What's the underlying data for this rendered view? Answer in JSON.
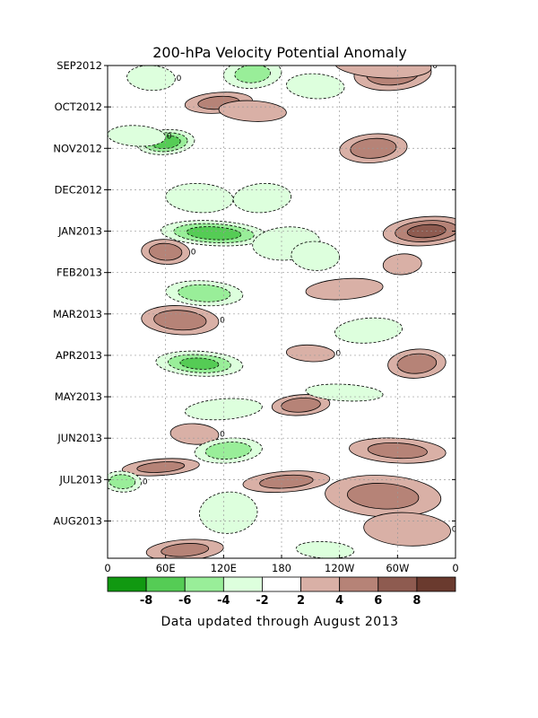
{
  "chart_data": {
    "type": "heatmap",
    "title": "200-hPa Velocity Potential Anomaly",
    "caption": "Data updated through August 2013",
    "x_ticks": [
      "0",
      "60E",
      "120E",
      "180",
      "120W",
      "60W",
      "0"
    ],
    "x_tick_lon": [
      0,
      60,
      120,
      180,
      240,
      300,
      360
    ],
    "xlim": [
      0,
      360
    ],
    "y_ticks": [
      "SEP2012",
      "OCT2012",
      "NOV2012",
      "DEC2012",
      "JAN2013",
      "FEB2013",
      "MAR2013",
      "APR2013",
      "MAY2013",
      "JUN2013",
      "JUL2013",
      "AUG2013"
    ],
    "y_tick_month": [
      0,
      1,
      2,
      3,
      4,
      5,
      6,
      7,
      8,
      9,
      10,
      11
    ],
    "ylim": [
      0,
      11.9
    ],
    "grid": true,
    "colorbar": {
      "tick_labels": [
        "-8",
        "-6",
        "-4",
        "-2",
        "2",
        "4",
        "6",
        "8"
      ],
      "colors": [
        "#119911",
        "#55cc55",
        "#99ee99",
        "#ddffdd",
        "#ffffff",
        "#d9b0a6",
        "#b68377",
        "#8e5b50",
        "#6a3a2e"
      ]
    },
    "zero_contour_label": "0",
    "anomaly_blobs": [
      {
        "lon": 45,
        "month": 0.3,
        "value": -3,
        "rlon": 25,
        "rmonth": 0.3
      },
      {
        "lon": 150,
        "month": 0.2,
        "value": -4,
        "rlon": 30,
        "rmonth": 0.35
      },
      {
        "lon": 215,
        "month": 0.5,
        "value": -3,
        "rlon": 30,
        "rmonth": 0.3
      },
      {
        "lon": 295,
        "month": 0.2,
        "value": 5,
        "rlon": 40,
        "rmonth": 0.4
      },
      {
        "lon": 285,
        "month": 0.0,
        "value": 3,
        "rlon": 50,
        "rmonth": 0.3
      },
      {
        "lon": 115,
        "month": 0.9,
        "value": 4,
        "rlon": 35,
        "rmonth": 0.25
      },
      {
        "lon": 150,
        "month": 1.1,
        "value": 3,
        "rlon": 35,
        "rmonth": 0.25
      },
      {
        "lon": 60,
        "month": 1.85,
        "value": -7,
        "rlon": 30,
        "rmonth": 0.3
      },
      {
        "lon": 30,
        "month": 1.7,
        "value": -3,
        "rlon": 30,
        "rmonth": 0.25
      },
      {
        "lon": 275,
        "month": 2.0,
        "value": 5,
        "rlon": 35,
        "rmonth": 0.35
      },
      {
        "lon": 95,
        "month": 3.2,
        "value": -3,
        "rlon": 35,
        "rmonth": 0.35
      },
      {
        "lon": 160,
        "month": 3.2,
        "value": -3,
        "rlon": 30,
        "rmonth": 0.35
      },
      {
        "lon": 110,
        "month": 4.05,
        "value": -7,
        "rlon": 55,
        "rmonth": 0.3
      },
      {
        "lon": 185,
        "month": 4.3,
        "value": -3,
        "rlon": 35,
        "rmonth": 0.4
      },
      {
        "lon": 215,
        "month": 4.6,
        "value": -3,
        "rlon": 25,
        "rmonth": 0.35
      },
      {
        "lon": 330,
        "month": 4.0,
        "value": 6,
        "rlon": 45,
        "rmonth": 0.35
      },
      {
        "lon": 60,
        "month": 4.5,
        "value": 5,
        "rlon": 25,
        "rmonth": 0.3
      },
      {
        "lon": 305,
        "month": 4.8,
        "value": 3,
        "rlon": 20,
        "rmonth": 0.25
      },
      {
        "lon": 100,
        "month": 5.5,
        "value": -5,
        "rlon": 40,
        "rmonth": 0.3
      },
      {
        "lon": 245,
        "month": 5.4,
        "value": 3,
        "rlon": 40,
        "rmonth": 0.25
      },
      {
        "lon": 75,
        "month": 6.15,
        "value": 5,
        "rlon": 40,
        "rmonth": 0.35
      },
      {
        "lon": 270,
        "month": 6.4,
        "value": -3,
        "rlon": 35,
        "rmonth": 0.3
      },
      {
        "lon": 95,
        "month": 7.2,
        "value": -6,
        "rlon": 45,
        "rmonth": 0.3
      },
      {
        "lon": 320,
        "month": 7.2,
        "value": 5,
        "rlon": 30,
        "rmonth": 0.35
      },
      {
        "lon": 210,
        "month": 6.95,
        "value": 3,
        "rlon": 25,
        "rmonth": 0.2
      },
      {
        "lon": 200,
        "month": 8.2,
        "value": 5,
        "rlon": 30,
        "rmonth": 0.25
      },
      {
        "lon": 245,
        "month": 7.9,
        "value": -3,
        "rlon": 40,
        "rmonth": 0.2
      },
      {
        "lon": 120,
        "month": 8.3,
        "value": -3,
        "rlon": 40,
        "rmonth": 0.25
      },
      {
        "lon": 90,
        "month": 8.9,
        "value": 3,
        "rlon": 25,
        "rmonth": 0.25
      },
      {
        "lon": 125,
        "month": 9.3,
        "value": -5,
        "rlon": 35,
        "rmonth": 0.3
      },
      {
        "lon": 300,
        "month": 9.3,
        "value": 4,
        "rlon": 50,
        "rmonth": 0.3
      },
      {
        "lon": 55,
        "month": 9.7,
        "value": 4,
        "rlon": 40,
        "rmonth": 0.2
      },
      {
        "lon": 15,
        "month": 10.05,
        "value": -5,
        "rlon": 20,
        "rmonth": 0.25
      },
      {
        "lon": 185,
        "month": 10.05,
        "value": 4,
        "rlon": 45,
        "rmonth": 0.25
      },
      {
        "lon": 285,
        "month": 10.4,
        "value": 4,
        "rlon": 60,
        "rmonth": 0.5
      },
      {
        "lon": 125,
        "month": 10.8,
        "value": -3,
        "rlon": 30,
        "rmonth": 0.5
      },
      {
        "lon": 310,
        "month": 11.2,
        "value": 3,
        "rlon": 45,
        "rmonth": 0.4
      },
      {
        "lon": 80,
        "month": 11.7,
        "value": 4,
        "rlon": 40,
        "rmonth": 0.25
      },
      {
        "lon": 225,
        "month": 11.7,
        "value": -3,
        "rlon": 30,
        "rmonth": 0.2
      }
    ]
  }
}
